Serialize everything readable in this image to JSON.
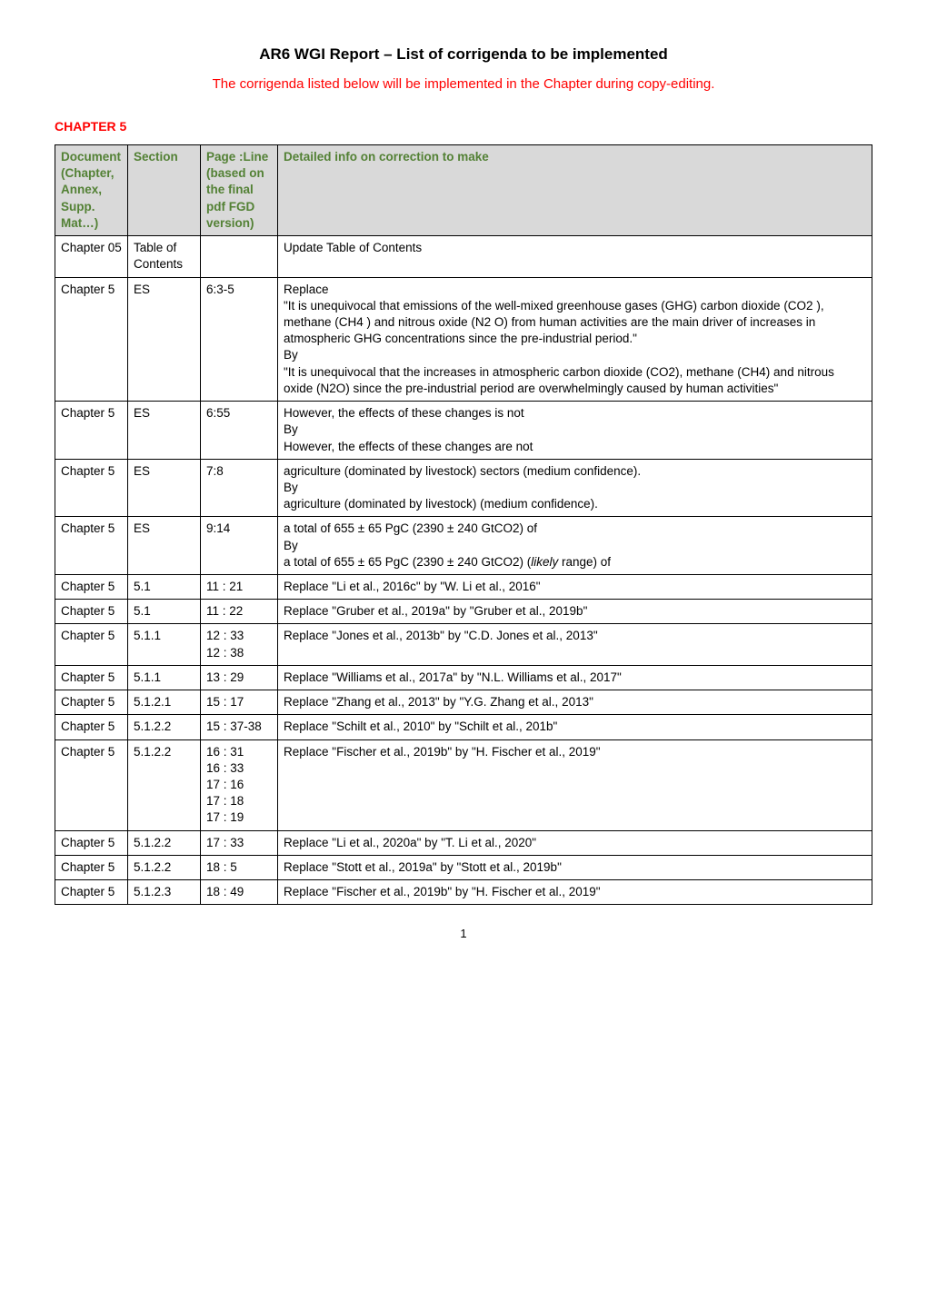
{
  "title": "AR6 WGI Report – List of corrigenda to be implemented",
  "subtitle": "The corrigenda listed below will be implemented in the Chapter during copy-editing.",
  "chapter_label": "CHAPTER 5",
  "colors": {
    "subtitle": "#ff0000",
    "chapter_label": "#ff0000",
    "header_bg": "#d9d9d9",
    "header_text": "#538135",
    "border": "#000000",
    "body_text": "#000000",
    "background": "#ffffff"
  },
  "headers": {
    "doc": "Document (Chapter, Annex, Supp. Mat…)",
    "section": "Section",
    "page": "Page :Line (based on the final pdf FGD version)",
    "detail": "Detailed info on correction to make"
  },
  "rows": [
    {
      "doc": "Chapter 05",
      "section": "Table of Contents",
      "page": "",
      "detail": "Update Table of Contents"
    },
    {
      "doc": "Chapter 5",
      "section": "ES",
      "page": "6:3-5",
      "detail": "Replace\n\"It is unequivocal that emissions of the well-mixed greenhouse gases (GHG) carbon dioxide (CO2 ), methane (CH4 ) and nitrous oxide (N2 O) from human activities are the main driver of increases in atmospheric GHG concentrations since the pre-industrial period.\"\nBy\n\"It is unequivocal that the increases in atmospheric carbon dioxide (CO2), methane (CH4) and nitrous oxide (N2O) since the pre-industrial period are overwhelmingly caused by human activities\""
    },
    {
      "doc": "Chapter 5",
      "section": "ES",
      "page": "6:55",
      "detail": "However, the effects of these changes is not\nBy\nHowever, the effects of these changes are not"
    },
    {
      "doc": "Chapter 5",
      "section": "ES",
      "page": "7:8",
      "detail": "agriculture (dominated by livestock) sectors (medium confidence).\nBy\nagriculture (dominated by livestock) (medium confidence)."
    },
    {
      "doc": "Chapter 5",
      "section": "ES",
      "page": "9:14",
      "detail": "a total of 655 ± 65 PgC (2390 ± 240 GtCO2) of\nBy\na total of 655 ± 65 PgC (2390 ± 240 GtCO2) (likely range) of"
    },
    {
      "doc": "Chapter 5",
      "section": "5.1",
      "page": "11 : 21",
      "detail": "Replace \"Li et al., 2016c\" by \"W. Li et al., 2016\""
    },
    {
      "doc": "Chapter 5",
      "section": "5.1",
      "page": "11 : 22",
      "detail": "Replace \"Gruber et al., 2019a\" by \"Gruber et al., 2019b\""
    },
    {
      "doc": "Chapter 5",
      "section": "5.1.1",
      "page": "12 : 33\n12 : 38",
      "detail": "Replace \"Jones et al., 2013b\" by \"C.D. Jones et al., 2013\""
    },
    {
      "doc": "Chapter 5",
      "section": "5.1.1",
      "page": "13 : 29",
      "detail": "Replace \"Williams et al., 2017a\" by \"N.L. Williams et al., 2017\""
    },
    {
      "doc": "Chapter 5",
      "section": "5.1.2.1",
      "page": "15 : 17",
      "detail": "Replace \"Zhang et al., 2013\" by \"Y.G. Zhang et al., 2013\""
    },
    {
      "doc": "Chapter 5",
      "section": "5.1.2.2",
      "page": "15 : 37-38",
      "detail": "Replace \"Schilt et al., 2010\" by \"Schilt et al., 201b\""
    },
    {
      "doc": "Chapter 5",
      "section": "5.1.2.2",
      "page": "16 : 31\n16 : 33\n17 : 16\n17 : 18\n17 : 19",
      "detail": "Replace \"Fischer et al., 2019b\" by \"H. Fischer et al., 2019\""
    },
    {
      "doc": "Chapter 5",
      "section": "5.1.2.2",
      "page": "17 : 33",
      "detail": "Replace \"Li et al., 2020a\" by \"T. Li et al., 2020\""
    },
    {
      "doc": "Chapter 5",
      "section": "5.1.2.2",
      "page": "18 : 5",
      "detail": "Replace \"Stott et al., 2019a\" by \"Stott et al., 2019b\""
    },
    {
      "doc": "Chapter 5",
      "section": "5.1.2.3",
      "page": "18 : 49",
      "detail": "Replace \"Fischer et al., 2019b\" by \"H. Fischer et al., 2019\""
    }
  ],
  "italic_hint_row": 4,
  "italic_word": "likely",
  "page_number": "1"
}
